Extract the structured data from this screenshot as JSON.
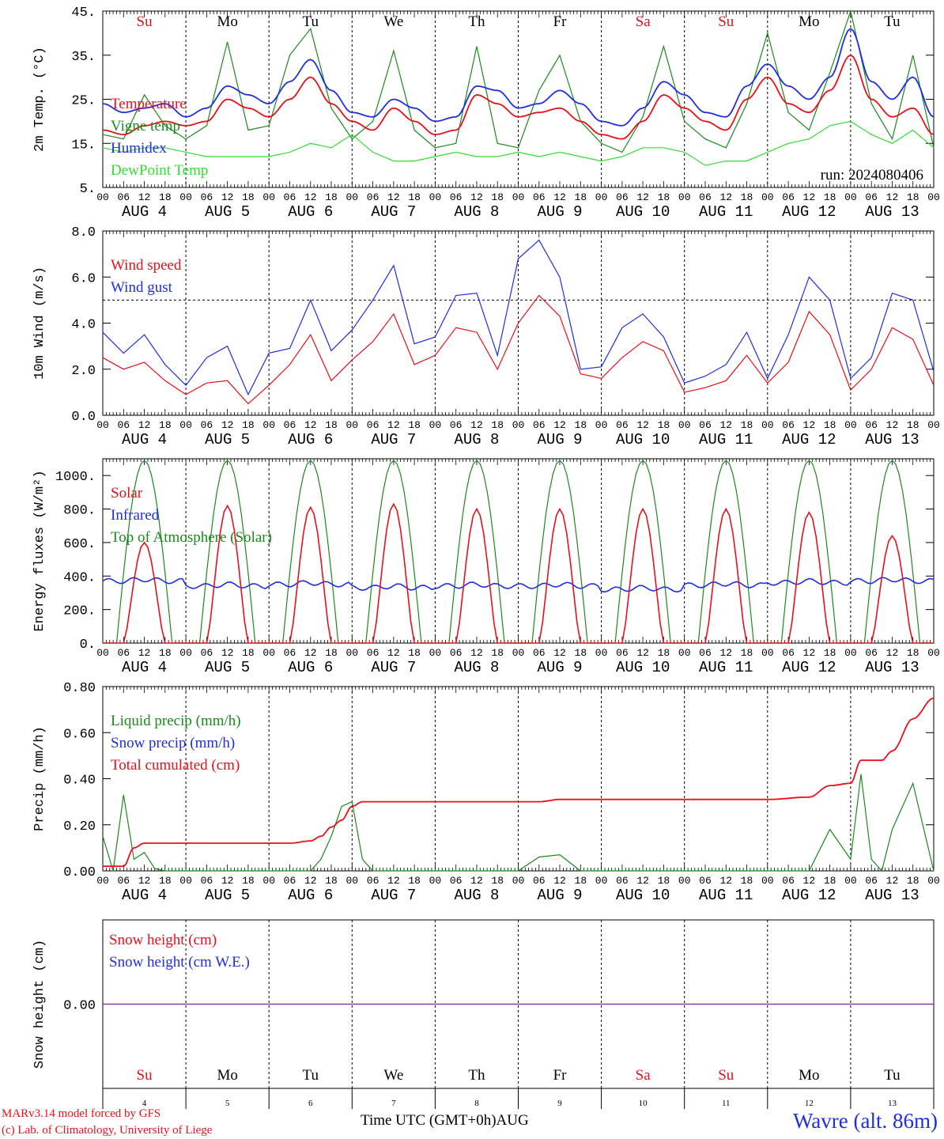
{
  "run_label": "run: 2024080406",
  "days": [
    {
      "abbr": "Su",
      "date": "4",
      "weekend": true
    },
    {
      "abbr": "Mo",
      "date": "5",
      "weekend": false
    },
    {
      "abbr": "Tu",
      "date": "6",
      "weekend": false
    },
    {
      "abbr": "We",
      "date": "7",
      "weekend": false
    },
    {
      "abbr": "Th",
      "date": "8",
      "weekend": false
    },
    {
      "abbr": "Fr",
      "date": "9",
      "weekend": false
    },
    {
      "abbr": "Sa",
      "date": "10",
      "weekend": true
    },
    {
      "abbr": "Su",
      "date": "11",
      "weekend": true
    },
    {
      "abbr": "Mo",
      "date": "12",
      "weekend": false
    },
    {
      "abbr": "Tu",
      "date": "13",
      "weekend": false
    }
  ],
  "month": "AUG",
  "hour_ticks": [
    "00",
    "06",
    "12",
    "18"
  ],
  "end_tick": "00",
  "colors": {
    "red": "#e8101a",
    "blue": "#1f2fe0",
    "green": "#1a8a1a",
    "lightgreen": "#33dd33",
    "purple": "#8a3aa8"
  },
  "footer": {
    "credit_line1": "MARv3.14 model forced by GFS",
    "credit_line2": "(c) Lab. of Climatology, University of Liege",
    "xaxis_title": "Time UTC (GMT+0h)",
    "xaxis_month": "AUG",
    "station": "Wavre (alt. 86m)"
  },
  "chart_data": [
    {
      "id": "temp",
      "type": "line",
      "ylabel": "2m Temp. (°C)",
      "ylim": [
        5,
        45
      ],
      "yticks": [
        5,
        15,
        25,
        35,
        45
      ],
      "ytick_labels": [
        "5.",
        "15.",
        "25.",
        "35.",
        "45."
      ],
      "x_hours_from_aug4_00": [
        0,
        6,
        12,
        18,
        24,
        30,
        36,
        42,
        48,
        54,
        60,
        66,
        72,
        78,
        84,
        90,
        96,
        102,
        108,
        114,
        120,
        126,
        132,
        138,
        144,
        150,
        156,
        162,
        168,
        174,
        180,
        186,
        192,
        198,
        204,
        210,
        216,
        222,
        228,
        234,
        240
      ],
      "series": [
        {
          "name": "Temperature",
          "color": "red",
          "values": [
            18,
            17,
            19,
            20,
            19,
            20,
            25,
            23,
            21,
            25,
            30,
            24,
            20,
            18,
            23,
            20,
            17,
            18,
            26,
            24,
            21,
            22,
            23,
            20,
            17,
            16,
            20,
            26,
            23,
            20,
            18,
            25,
            30,
            24,
            22,
            27,
            35,
            25,
            21,
            23,
            17
          ]
        },
        {
          "name": "Vigne temp",
          "color": "green",
          "values": [
            17,
            16,
            26,
            19,
            16,
            19,
            38,
            18,
            19,
            35,
            41,
            23,
            16,
            20,
            36,
            18,
            14,
            15,
            37,
            15,
            14,
            27,
            35,
            20,
            15,
            13,
            21,
            37,
            20,
            16,
            14,
            24,
            40,
            22,
            18,
            31,
            45,
            24,
            16,
            35,
            14
          ]
        },
        {
          "name": "Humidex",
          "color": "blue",
          "values": [
            24,
            22,
            23,
            24,
            21,
            23,
            28,
            26,
            24,
            29,
            34,
            27,
            22,
            21,
            25,
            23,
            20,
            21,
            28,
            27,
            23,
            24,
            27,
            24,
            20,
            19,
            23,
            29,
            26,
            22,
            21,
            28,
            33,
            28,
            25,
            30,
            41,
            29,
            25,
            30,
            21
          ]
        },
        {
          "name": "DewPoint Temp",
          "color": "lightgreen",
          "values": [
            14,
            13,
            14,
            14,
            13,
            12,
            12,
            12,
            12,
            13,
            15,
            14,
            17,
            13,
            11,
            11,
            12,
            13,
            12,
            12,
            13,
            12,
            13,
            12,
            11,
            12,
            14,
            14,
            13,
            10,
            11,
            11,
            13,
            15,
            16,
            19,
            20,
            17,
            15,
            18,
            14
          ]
        }
      ]
    },
    {
      "id": "wind",
      "type": "line",
      "ylabel": "10m Wind (m/s)",
      "ylim": [
        0,
        8
      ],
      "yticks": [
        0,
        2,
        4,
        6,
        8
      ],
      "ytick_labels": [
        "0.0",
        "2.0",
        "4.0",
        "6.0",
        "8.0"
      ],
      "reference_line": 5,
      "x_hours_from_aug4_00": [
        0,
        6,
        12,
        18,
        24,
        30,
        36,
        42,
        48,
        54,
        60,
        66,
        72,
        78,
        84,
        90,
        96,
        102,
        108,
        114,
        120,
        126,
        132,
        138,
        144,
        150,
        156,
        162,
        168,
        174,
        180,
        186,
        192,
        198,
        204,
        210,
        216,
        222,
        228,
        234,
        240
      ],
      "series": [
        {
          "name": "Wind speed",
          "color": "red",
          "values": [
            2.5,
            2.0,
            2.3,
            1.5,
            0.9,
            1.4,
            1.5,
            0.5,
            1.3,
            2.2,
            3.5,
            1.5,
            2.4,
            3.2,
            4.4,
            2.2,
            2.6,
            3.8,
            3.6,
            2.0,
            4.0,
            5.2,
            4.3,
            1.8,
            1.6,
            2.5,
            3.2,
            2.8,
            1.0,
            1.2,
            1.5,
            2.6,
            1.4,
            2.3,
            4.5,
            3.5,
            1.1,
            2.0,
            3.8,
            3.3,
            1.3
          ]
        },
        {
          "name": "Wind gust",
          "color": "blue",
          "values": [
            3.6,
            2.7,
            3.5,
            2.2,
            1.3,
            2.5,
            3.0,
            0.9,
            2.7,
            2.9,
            5.0,
            2.8,
            3.7,
            5.0,
            6.5,
            3.1,
            3.4,
            5.2,
            5.3,
            2.6,
            6.8,
            7.6,
            6.0,
            2.0,
            2.1,
            3.8,
            4.4,
            3.4,
            1.4,
            1.7,
            2.2,
            3.6,
            1.6,
            3.5,
            6.0,
            5.0,
            1.6,
            2.5,
            5.3,
            5.0,
            1.9
          ]
        }
      ]
    },
    {
      "id": "energy",
      "type": "line",
      "ylabel": "Energy fluxes (W/m²)",
      "ylim": [
        0,
        1100
      ],
      "yticks": [
        0,
        200,
        400,
        600,
        800,
        1000
      ],
      "ytick_labels": [
        "0.",
        "200.",
        "400.",
        "600.",
        "800.",
        "1000."
      ],
      "toa_peak": 1090,
      "solar_daily_peak": [
        600,
        820,
        810,
        830,
        800,
        800,
        800,
        800,
        780,
        640
      ],
      "infrared_daily": [
        370,
        340,
        350,
        330,
        340,
        340,
        320,
        345,
        360,
        370
      ],
      "series": [
        {
          "name": "Solar",
          "color": "red"
        },
        {
          "name": "Infrared",
          "color": "blue"
        },
        {
          "name": "Top of Atmosphere (Solar)",
          "color": "green"
        }
      ]
    },
    {
      "id": "precip",
      "type": "line",
      "ylabel": "Precip (mm/h)",
      "ylim": [
        0,
        0.8
      ],
      "yticks": [
        0,
        0.2,
        0.4,
        0.6,
        0.8
      ],
      "ytick_labels": [
        "0.00",
        "0.20",
        "0.40",
        "0.60",
        "0.80"
      ],
      "x_hours_from_aug4_00": [
        0,
        3,
        6,
        9,
        12,
        15,
        18,
        24,
        48,
        54,
        60,
        63,
        66,
        69,
        72,
        75,
        78,
        84,
        96,
        120,
        126,
        132,
        138,
        144,
        168,
        192,
        204,
        210,
        216,
        219,
        222,
        225,
        228,
        234,
        240
      ],
      "series": [
        {
          "name": "Liquid precip (mm/h)",
          "color": "green",
          "values": [
            0.15,
            0.0,
            0.33,
            0.05,
            0.08,
            0.01,
            0.0,
            0.0,
            0.0,
            0.0,
            0.0,
            0.05,
            0.15,
            0.28,
            0.3,
            0.05,
            0.0,
            0.0,
            0.0,
            0.0,
            0.06,
            0.07,
            0.0,
            0.0,
            0.0,
            0.0,
            0.0,
            0.18,
            0.05,
            0.42,
            0.05,
            0.0,
            0.18,
            0.38,
            0.0
          ]
        },
        {
          "name": "Snow precip (mm/h)",
          "color": "blue",
          "values": []
        },
        {
          "name": "Total cumulated (cm)",
          "color": "red",
          "values": [
            0.02,
            0.02,
            0.02,
            0.1,
            0.12,
            0.12,
            0.12,
            0.12,
            0.12,
            0.12,
            0.13,
            0.15,
            0.19,
            0.22,
            0.28,
            0.3,
            0.3,
            0.3,
            0.3,
            0.3,
            0.3,
            0.31,
            0.31,
            0.31,
            0.31,
            0.31,
            0.32,
            0.37,
            0.38,
            0.48,
            0.48,
            0.48,
            0.52,
            0.66,
            0.75
          ]
        }
      ]
    },
    {
      "id": "snow",
      "type": "line",
      "ylabel": "Snow height (cm)",
      "ylim": [
        -1,
        1
      ],
      "yticks": [
        0
      ],
      "ytick_labels": [
        "0.00"
      ],
      "series": [
        {
          "name": "Snow height (cm)",
          "color": "red",
          "values": [
            0,
            0
          ]
        },
        {
          "name": "Snow height (cm W.E.)",
          "color": "blue",
          "values": [
            0,
            0
          ]
        }
      ]
    }
  ]
}
